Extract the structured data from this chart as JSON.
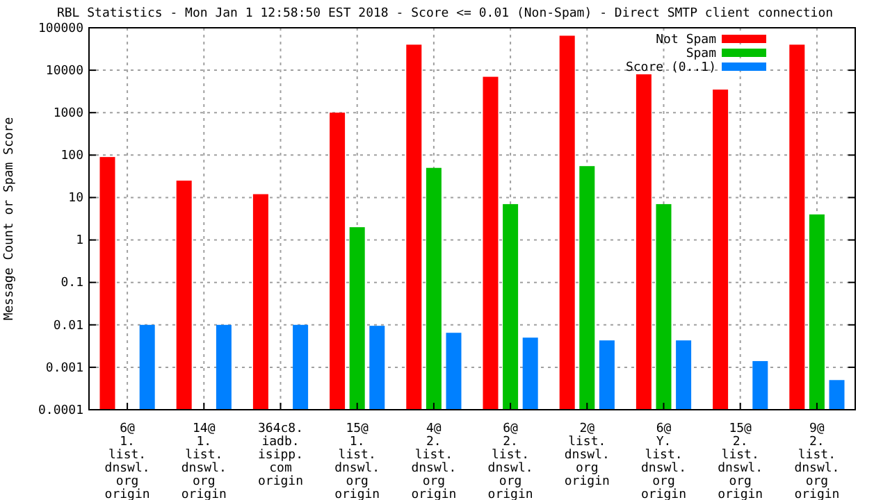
{
  "chart_data": {
    "type": "bar",
    "title": "RBL Statistics - Mon Jan  1 12:58:50 EST 2018 - Score <= 0.01 (Non-Spam) - Direct SMTP client connection",
    "ylabel": "Message Count or Spam Score",
    "categories": [
      "6@\n1.\nlist.\ndnswl.\norg\norigin",
      "14@\n1.\nlist.\ndnswl.\norg\norigin",
      "364c8.\niadb.\nisipp.\ncom\norigin",
      "15@\n1.\nlist.\ndnswl.\norg\norigin",
      "4@\n2.\nlist.\ndnswl.\norg\norigin",
      "6@\n2.\nlist.\ndnswl.\norg\norigin",
      "2@\nlist.\ndnswl.\norg\norigin",
      "6@\nY.\nlist.\ndnswl.\norg\norigin",
      "15@\n2.\nlist.\ndnswl.\norg\norigin",
      "9@\n2.\nlist.\ndnswl.\norg\norigin"
    ],
    "series": [
      {
        "name": "Not Spam",
        "color": "#ff0000",
        "values": [
          90,
          25,
          12,
          1000,
          40000,
          7000,
          65000,
          8000,
          3500,
          40000
        ]
      },
      {
        "name": "Spam",
        "color": "#00c000",
        "values": [
          null,
          null,
          null,
          2,
          50,
          7,
          55,
          7,
          null,
          4
        ]
      },
      {
        "name": "Score (0..1)",
        "color": "#0080ff",
        "values": [
          0.01,
          0.01,
          0.01,
          0.0095,
          0.0065,
          0.005,
          0.0043,
          0.0043,
          0.0014,
          0.0005
        ]
      }
    ],
    "log": true,
    "ylim": [
      0.0001,
      100000
    ],
    "yticks": [
      0.0001,
      0.001,
      0.01,
      0.1,
      1,
      10,
      100,
      1000,
      10000,
      100000
    ],
    "grid": true,
    "legend": "top right"
  }
}
